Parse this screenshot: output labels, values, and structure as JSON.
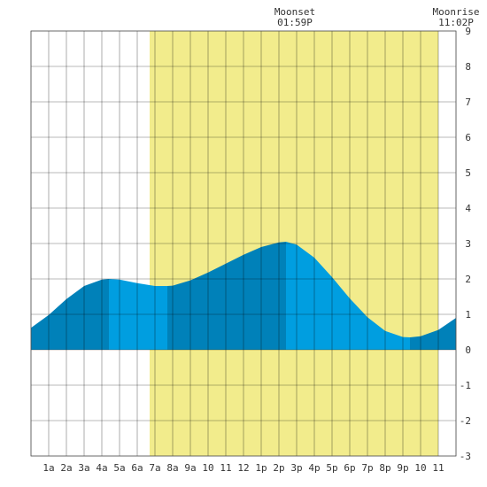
{
  "chart_data": {
    "type": "area",
    "title": "",
    "xlabel": "",
    "ylabel": "",
    "xlim": [
      0,
      24
    ],
    "ylim": [
      -3,
      9
    ],
    "grid": true,
    "x_tick_labels": [
      "1a",
      "2a",
      "3a",
      "4a",
      "5a",
      "6a",
      "7a",
      "8a",
      "9a",
      "10",
      "11",
      "12",
      "1p",
      "2p",
      "3p",
      "4p",
      "5p",
      "6p",
      "7p",
      "8p",
      "9p",
      "10",
      "11"
    ],
    "y_tick_labels": [
      "9",
      "8",
      "7",
      "6",
      "5",
      "4",
      "3",
      "2",
      "1",
      "0",
      "-1",
      "-2",
      "-3"
    ],
    "daylight": {
      "start_hour": 6.7,
      "end_hour": 23.0
    },
    "moon_events": [
      {
        "label": "Moonset",
        "time": "01:59P",
        "hour": 13.98
      },
      {
        "label": "Moonrise",
        "time": "11:02P",
        "hour": 23.03
      }
    ],
    "tide_extrema": [
      {
        "type": "high",
        "hour": 4.4,
        "height": 2.0
      },
      {
        "type": "low",
        "hour": 7.7,
        "height": 1.8
      },
      {
        "type": "high",
        "hour": 14.4,
        "height": 3.05
      },
      {
        "type": "low",
        "hour": 21.4,
        "height": 0.35
      }
    ],
    "series": [
      {
        "x": [
          0,
          1,
          2,
          3,
          4,
          4.4,
          5,
          6,
          7,
          7.7,
          8,
          9,
          10,
          11,
          12,
          13,
          14,
          14.4,
          15,
          16,
          17,
          18,
          19,
          20,
          21,
          21.4,
          22,
          23,
          24
        ],
        "values": [
          0.62,
          0.98,
          1.43,
          1.8,
          1.98,
          2.0,
          1.98,
          1.88,
          1.8,
          1.8,
          1.81,
          1.96,
          2.18,
          2.43,
          2.68,
          2.9,
          3.03,
          3.05,
          2.97,
          2.6,
          2.05,
          1.45,
          0.92,
          0.53,
          0.36,
          0.35,
          0.38,
          0.56,
          0.9
        ]
      }
    ],
    "colors": {
      "daylight": "#f2ec8c",
      "tide_light": "#009ee0",
      "tide_dark": "#0081b9",
      "grid": "#000000",
      "background": "#ffffff"
    }
  }
}
